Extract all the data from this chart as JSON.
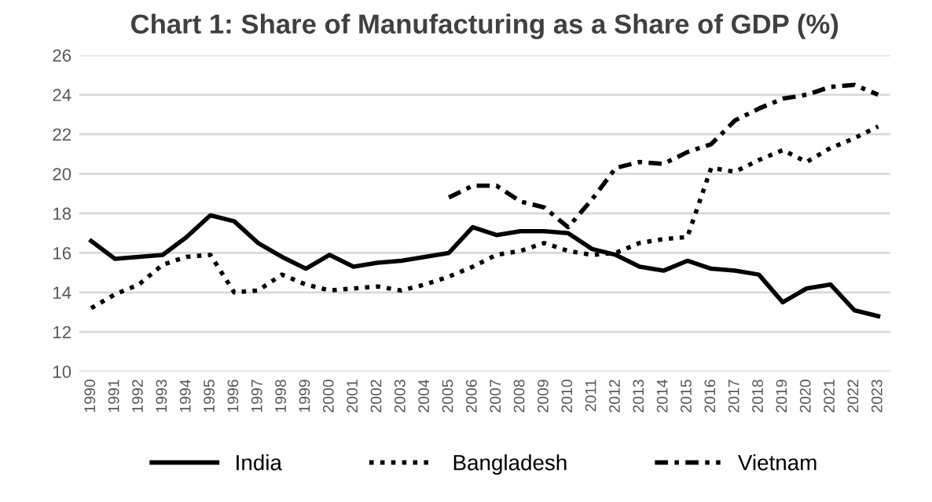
{
  "chart_data": {
    "type": "line",
    "title": "Chart 1: Share of Manufacturing as a Share of GDP (%)",
    "categories": [
      "1990",
      "1991",
      "1992",
      "1993",
      "1994",
      "1995",
      "1996",
      "1997",
      "1998",
      "1999",
      "2000",
      "2001",
      "2002",
      "2003",
      "2004",
      "2005",
      "2006",
      "2007",
      "2008",
      "2009",
      "2010",
      "2011",
      "2012",
      "2013",
      "2014",
      "2015",
      "2016",
      "2017",
      "2018",
      "2019",
      "2020",
      "2021",
      "2022",
      "2023"
    ],
    "series": [
      {
        "name": "India",
        "color": "#000000",
        "line_style": "solid",
        "values": [
          16.6,
          15.7,
          15.8,
          15.9,
          16.8,
          17.9,
          17.6,
          16.5,
          15.8,
          15.2,
          15.9,
          15.3,
          15.5,
          15.6,
          15.8,
          16.0,
          17.3,
          16.9,
          17.1,
          17.1,
          17.0,
          16.2,
          15.9,
          15.3,
          15.1,
          15.6,
          15.2,
          15.1,
          14.9,
          13.5,
          14.2,
          14.4,
          13.1,
          12.8
        ]
      },
      {
        "name": "Bangladesh",
        "color": "#000000",
        "line_style": "dotted",
        "values": [
          13.2,
          13.9,
          14.4,
          15.4,
          15.8,
          15.9,
          14.0,
          14.1,
          14.9,
          14.4,
          14.1,
          14.2,
          14.3,
          14.1,
          14.4,
          14.8,
          15.3,
          15.9,
          16.1,
          16.5,
          16.1,
          15.9,
          16.0,
          16.5,
          16.7,
          16.8,
          20.3,
          20.1,
          20.7,
          21.2,
          20.6,
          21.3,
          21.8,
          22.4
        ]
      },
      {
        "name": "Vietnam",
        "color": "#000000",
        "line_style": "dashdot",
        "values": [
          null,
          null,
          null,
          null,
          null,
          null,
          null,
          null,
          null,
          null,
          null,
          null,
          null,
          null,
          null,
          18.8,
          19.4,
          19.4,
          18.6,
          18.3,
          17.3,
          18.7,
          20.3,
          20.6,
          20.5,
          21.1,
          21.5,
          22.7,
          23.3,
          23.8,
          24.0,
          24.4,
          24.5,
          24.0
        ]
      }
    ],
    "ylim": [
      10,
      26
    ],
    "yticks": [
      10,
      12,
      14,
      16,
      18,
      20,
      22,
      24,
      26
    ],
    "grid": "y",
    "legend": "bottom"
  }
}
